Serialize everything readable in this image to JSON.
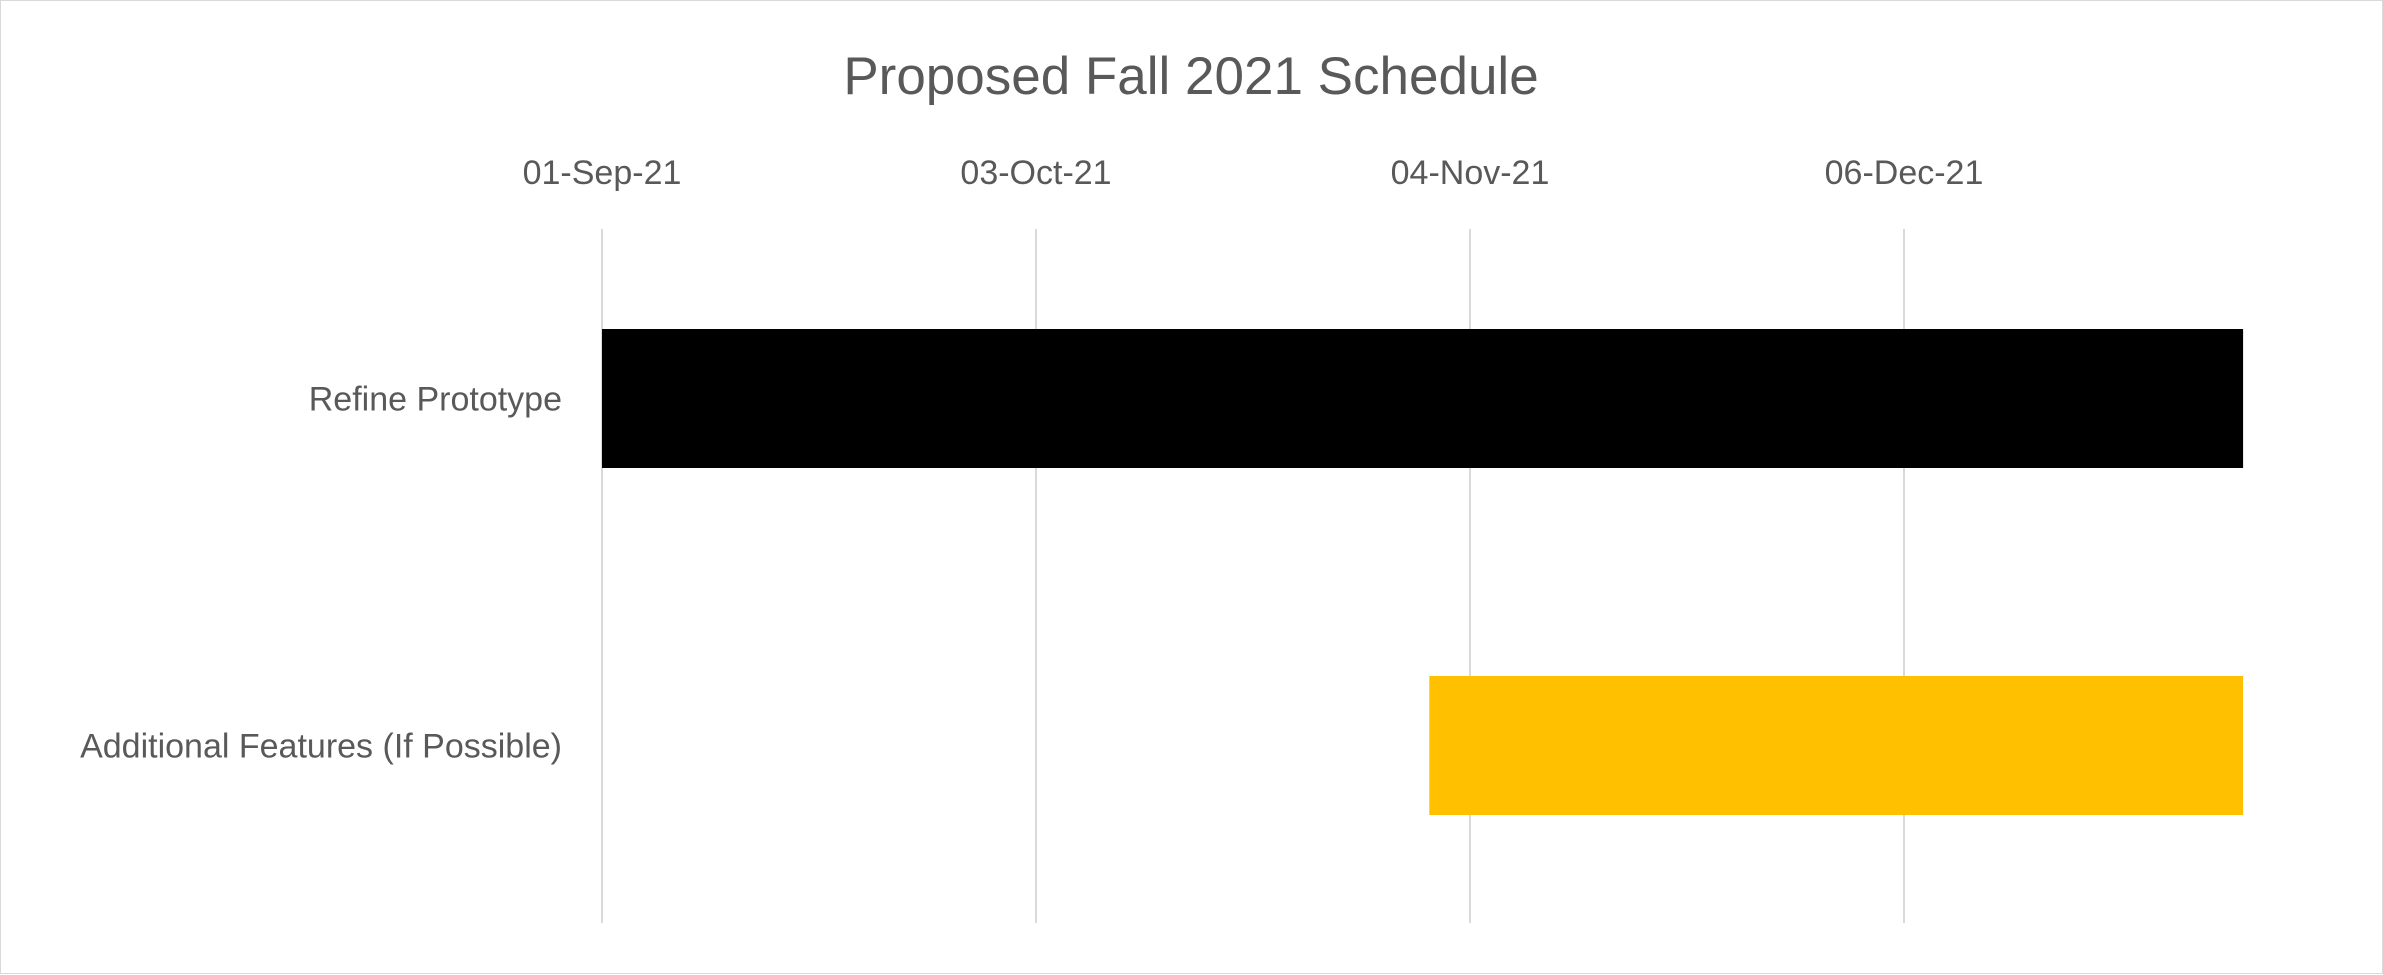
{
  "chart_data": {
    "type": "bar",
    "orientation": "horizontal",
    "title": "Proposed Fall 2021 Schedule",
    "x_axis": {
      "position": "top",
      "tick_labels": [
        "01-Sep-21",
        "03-Oct-21",
        "04-Nov-21",
        "06-Dec-21"
      ],
      "tick_values": [
        "2021-09-01",
        "2021-10-03",
        "2021-11-04",
        "2021-12-06"
      ],
      "range": [
        "2021-09-01",
        "2021-12-31"
      ],
      "grid": true
    },
    "categories": [
      "Refine Prototype",
      "Additional Features (If Possible)"
    ],
    "tasks": [
      {
        "category": "Refine Prototype",
        "start": "2021-09-01",
        "end": "2021-12-31",
        "color": "#000000"
      },
      {
        "category": "Additional Features (If Possible)",
        "start": "2021-11-01",
        "end": "2021-12-31",
        "color": "#FFC000"
      }
    ],
    "legend": "none"
  }
}
